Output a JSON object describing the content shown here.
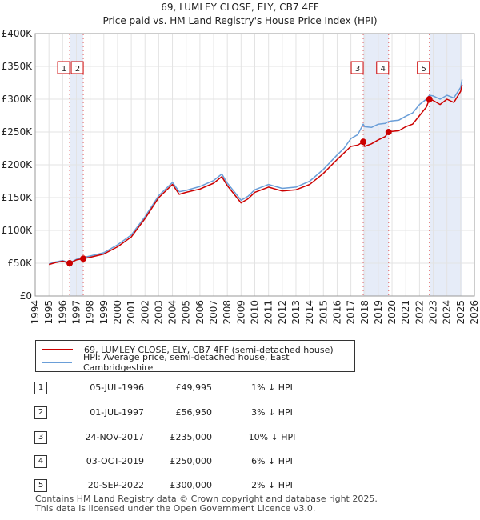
{
  "chart_data": {
    "type": "line",
    "title": "69, LUMLEY CLOSE, ELY, CB7 4FF",
    "subtitle": "Price paid vs. HM Land Registry's House Price Index (HPI)",
    "xlim": [
      1994,
      2026
    ],
    "ylim": [
      0,
      400000
    ],
    "x_ticks": [
      "1994",
      "1995",
      "1996",
      "1997",
      "1998",
      "1999",
      "2000",
      "2001",
      "2002",
      "2003",
      "2004",
      "2005",
      "2006",
      "2007",
      "2008",
      "2009",
      "2010",
      "2011",
      "2012",
      "2013",
      "2014",
      "2015",
      "2016",
      "2017",
      "2018",
      "2019",
      "2020",
      "2021",
      "2022",
      "2023",
      "2024",
      "2025",
      "2026"
    ],
    "y_ticks": [
      {
        "value": 0,
        "label": "£0"
      },
      {
        "value": 50000,
        "label": "£50K"
      },
      {
        "value": 100000,
        "label": "£100K"
      },
      {
        "value": 150000,
        "label": "£150K"
      },
      {
        "value": 200000,
        "label": "£200K"
      },
      {
        "value": 250000,
        "label": "£250K"
      },
      {
        "value": 300000,
        "label": "£300K"
      },
      {
        "value": 350000,
        "label": "£350K"
      },
      {
        "value": 400000,
        "label": "£400K"
      }
    ],
    "shaded_ranges": [
      [
        1996.5,
        1997.5
      ],
      [
        2017.9,
        2019.75
      ],
      [
        2022.72,
        2025.1
      ]
    ],
    "series": [
      {
        "name": "69, LUMLEY CLOSE, ELY, CB7 4FF (semi-detached house)",
        "color": "#cc0000",
        "x": [
          1995.0,
          1995.5,
          1996.0,
          1996.51,
          1997.0,
          1997.5,
          1998.0,
          1999.0,
          2000.0,
          2001.0,
          2002.0,
          2003.0,
          2004.0,
          2004.5,
          2005.0,
          2006.0,
          2007.0,
          2007.6,
          2008.0,
          2008.5,
          2009.0,
          2009.5,
          2010.0,
          2011.0,
          2012.0,
          2013.0,
          2014.0,
          2015.0,
          2016.0,
          2016.5,
          2017.0,
          2017.5,
          2017.9,
          2018.0,
          2018.5,
          2019.0,
          2019.5,
          2019.75,
          2020.0,
          2020.5,
          2021.0,
          2021.5,
          2022.0,
          2022.5,
          2022.72,
          2023.0,
          2023.5,
          2024.0,
          2024.5,
          2025.0,
          2025.1
        ],
        "y": [
          48000,
          51000,
          53000,
          49995,
          55000,
          56950,
          59000,
          64000,
          75000,
          90000,
          118000,
          150000,
          170000,
          155000,
          158000,
          163000,
          172000,
          182000,
          168000,
          155000,
          142000,
          148000,
          158000,
          166000,
          160000,
          162000,
          170000,
          187000,
          208000,
          218000,
          228000,
          230000,
          235000,
          228000,
          232000,
          238000,
          243000,
          250000,
          251000,
          252000,
          258000,
          262000,
          275000,
          288000,
          300000,
          298000,
          292000,
          300000,
          295000,
          312000,
          322000
        ]
      },
      {
        "name": "HPI: Average price, semi-detached house, East Cambridgeshire",
        "color": "#6a9ed8",
        "x": [
          1995.0,
          1995.5,
          1996.0,
          1996.51,
          1997.0,
          1997.5,
          1998.0,
          1999.0,
          2000.0,
          2001.0,
          2002.0,
          2003.0,
          2004.0,
          2004.5,
          2005.0,
          2006.0,
          2007.0,
          2007.6,
          2008.0,
          2008.5,
          2009.0,
          2009.5,
          2010.0,
          2011.0,
          2012.0,
          2013.0,
          2014.0,
          2015.0,
          2016.0,
          2016.5,
          2017.0,
          2017.5,
          2017.9,
          2018.0,
          2018.5,
          2019.0,
          2019.5,
          2019.75,
          2020.0,
          2020.5,
          2021.0,
          2021.5,
          2022.0,
          2022.5,
          2022.72,
          2023.0,
          2023.5,
          2024.0,
          2024.5,
          2025.0,
          2025.1
        ],
        "y": [
          49000,
          52000,
          54000,
          50500,
          56000,
          58800,
          61000,
          66000,
          78000,
          93000,
          121000,
          153000,
          173000,
          159000,
          161000,
          167000,
          176000,
          186000,
          172000,
          159000,
          146000,
          152000,
          162000,
          170000,
          164000,
          166000,
          175000,
          193000,
          215000,
          225000,
          240000,
          246000,
          262000,
          258000,
          257000,
          262000,
          263000,
          266000,
          267000,
          268000,
          274000,
          279000,
          292000,
          300000,
          306000,
          305000,
          300000,
          306000,
          302000,
          318000,
          330000
        ]
      }
    ],
    "markers": [
      {
        "label": "1",
        "x": 1996.51,
        "y": 49995
      },
      {
        "label": "2",
        "x": 1997.5,
        "y": 56950
      },
      {
        "label": "3",
        "x": 2017.9,
        "y": 235000
      },
      {
        "label": "4",
        "x": 2019.75,
        "y": 250000
      },
      {
        "label": "5",
        "x": 2022.72,
        "y": 300000
      }
    ]
  },
  "legend": {
    "series1": "69, LUMLEY CLOSE, ELY, CB7 4FF (semi-detached house)",
    "series2": "HPI: Average price, semi-detached house, East Cambridgeshire"
  },
  "sales": [
    {
      "num": "1",
      "date": "05-JUL-1996",
      "price": "£49,995",
      "hpi": "1% ↓ HPI"
    },
    {
      "num": "2",
      "date": "01-JUL-1997",
      "price": "£56,950",
      "hpi": "3% ↓ HPI"
    },
    {
      "num": "3",
      "date": "24-NOV-2017",
      "price": "£235,000",
      "hpi": "10% ↓ HPI"
    },
    {
      "num": "4",
      "date": "03-OCT-2019",
      "price": "£250,000",
      "hpi": "6% ↓ HPI"
    },
    {
      "num": "5",
      "date": "20-SEP-2022",
      "price": "£300,000",
      "hpi": "2% ↓ HPI"
    }
  ],
  "footer": {
    "line1": "Contains HM Land Registry data © Crown copyright and database right 2025.",
    "line2": "This data is licensed under the Open Government Licence v3.0."
  }
}
